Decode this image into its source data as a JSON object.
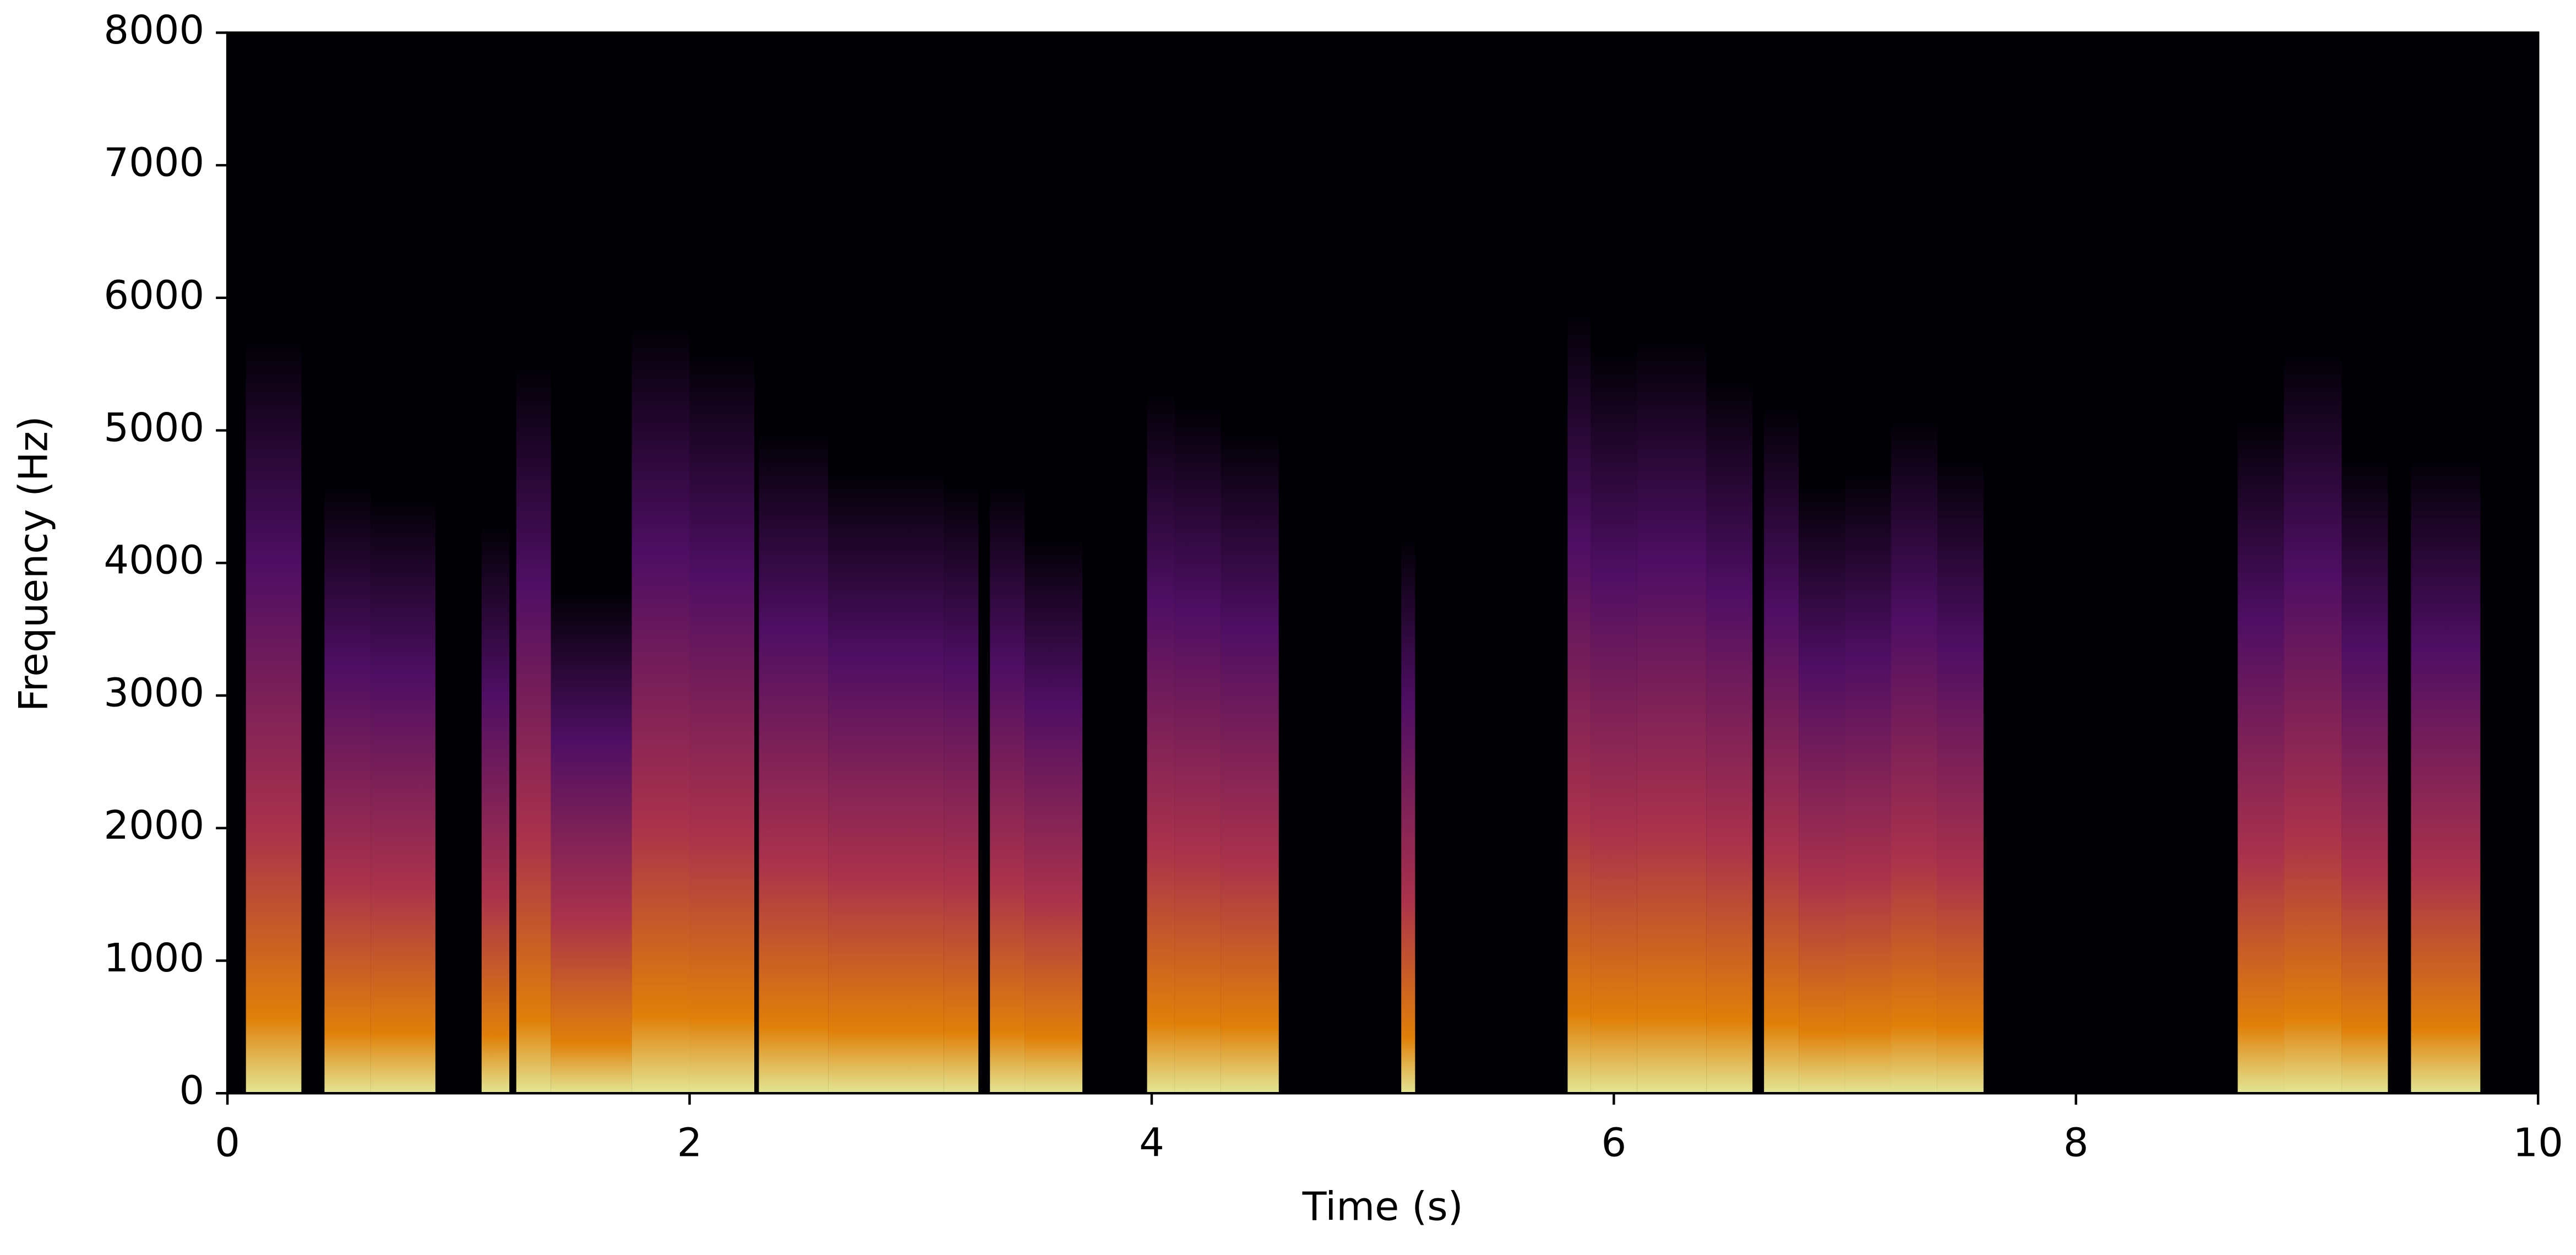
{
  "chart_data": {
    "type": "spectrogram",
    "x_label": "Time (s)",
    "y_label": "Frequency (Hz)",
    "xlim": [
      0,
      10
    ],
    "xticks": [
      0,
      2,
      4,
      6,
      8,
      10
    ],
    "ylim": [
      0,
      8000
    ],
    "yticks": [
      0,
      1000,
      2000,
      3000,
      4000,
      5000,
      6000,
      7000,
      8000
    ],
    "background": "#000004",
    "colors": [
      "#fcffa4",
      "#f98e09",
      "#bc3754",
      "#57106e",
      "#000004"
    ],
    "segments": [
      {
        "start": 0.08,
        "end": 0.32,
        "fmax": 5700
      },
      {
        "start": 0.42,
        "end": 0.62,
        "fmax": 4600
      },
      {
        "start": 0.62,
        "end": 0.9,
        "fmax": 4500
      },
      {
        "start": 1.1,
        "end": 1.22,
        "fmax": 4300
      },
      {
        "start": 1.25,
        "end": 1.4,
        "fmax": 5500
      },
      {
        "start": 1.4,
        "end": 1.75,
        "fmax": 3800
      },
      {
        "start": 1.75,
        "end": 2.0,
        "fmax": 5800
      },
      {
        "start": 2.0,
        "end": 2.28,
        "fmax": 5600
      },
      {
        "start": 2.3,
        "end": 2.6,
        "fmax": 5000
      },
      {
        "start": 2.6,
        "end": 3.1,
        "fmax": 4700
      },
      {
        "start": 3.1,
        "end": 3.25,
        "fmax": 4600
      },
      {
        "start": 3.3,
        "end": 3.45,
        "fmax": 4600
      },
      {
        "start": 3.45,
        "end": 3.7,
        "fmax": 4200
      },
      {
        "start": 3.98,
        "end": 4.1,
        "fmax": 5300
      },
      {
        "start": 4.1,
        "end": 4.3,
        "fmax": 5200
      },
      {
        "start": 4.3,
        "end": 4.55,
        "fmax": 5000
      },
      {
        "start": 5.08,
        "end": 5.14,
        "fmax": 4200
      },
      {
        "start": 5.8,
        "end": 5.9,
        "fmax": 5900
      },
      {
        "start": 5.9,
        "end": 6.1,
        "fmax": 5600
      },
      {
        "start": 6.1,
        "end": 6.4,
        "fmax": 5700
      },
      {
        "start": 6.4,
        "end": 6.6,
        "fmax": 5400
      },
      {
        "start": 6.65,
        "end": 6.8,
        "fmax": 5200
      },
      {
        "start": 6.8,
        "end": 7.0,
        "fmax": 4600
      },
      {
        "start": 7.0,
        "end": 7.2,
        "fmax": 4700
      },
      {
        "start": 7.2,
        "end": 7.4,
        "fmax": 5100
      },
      {
        "start": 7.4,
        "end": 7.6,
        "fmax": 4800
      },
      {
        "start": 8.7,
        "end": 8.9,
        "fmax": 5100
      },
      {
        "start": 8.9,
        "end": 9.15,
        "fmax": 5600
      },
      {
        "start": 9.15,
        "end": 9.35,
        "fmax": 4800
      },
      {
        "start": 9.45,
        "end": 9.75,
        "fmax": 4800
      }
    ]
  }
}
